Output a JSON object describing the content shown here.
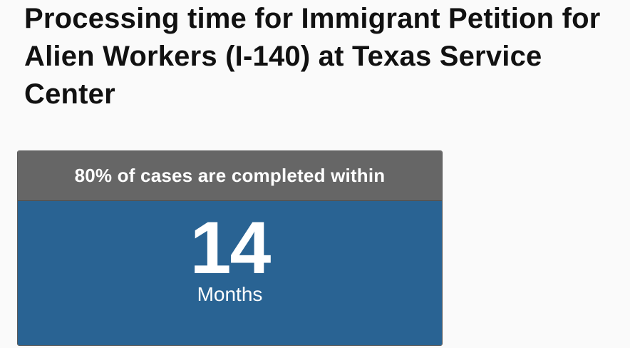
{
  "page": {
    "title": "Processing time for Immigrant Petition for Alien Workers (I-140) at Texas Service Center"
  },
  "result_card": {
    "header": "80% of cases are completed within",
    "value": "14",
    "unit": "Months"
  },
  "colors": {
    "header_bg": "#666666",
    "body_bg": "#296393",
    "text_on_card": "#ffffff",
    "title_text": "#111111"
  }
}
